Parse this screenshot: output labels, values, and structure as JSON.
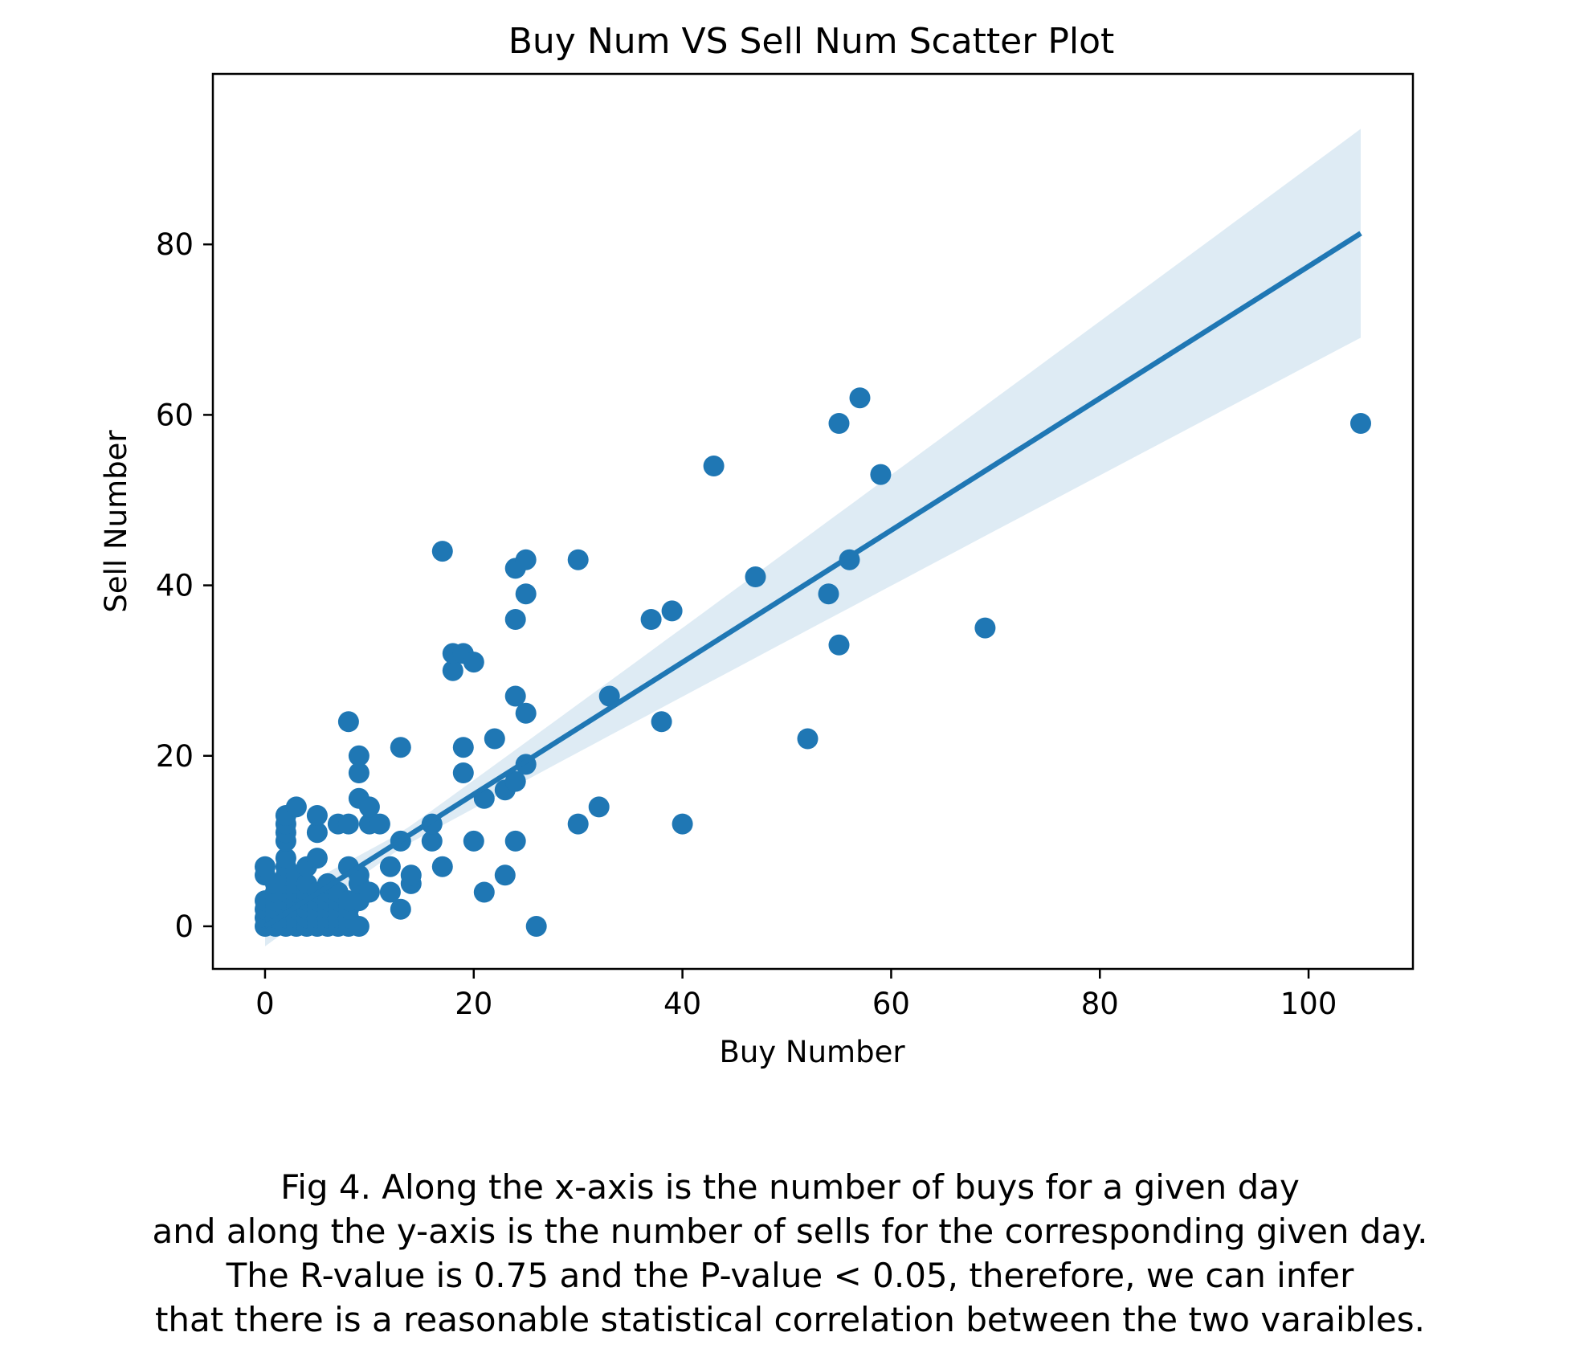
{
  "chart_data": {
    "type": "scatter",
    "title": "Buy Num VS Sell Num Scatter Plot",
    "xlabel": "Buy Number",
    "ylabel": "Sell Number",
    "xlim": [
      -5,
      110
    ],
    "ylim": [
      -5,
      100
    ],
    "xticks": [
      0,
      20,
      40,
      60,
      80,
      100
    ],
    "yticks": [
      0,
      20,
      40,
      60,
      80
    ],
    "grid": false,
    "colors": {
      "points": "#1f77b4",
      "line": "#1f77b4",
      "ci_band": "#1f77b4"
    },
    "regression": {
      "x_range": [
        0,
        105
      ],
      "y_range": [
        0,
        81.3
      ],
      "ci_upper_at_max": 95,
      "ci_lower_at_max": 70.5
    },
    "points": [
      {
        "x": 0,
        "y": 0
      },
      {
        "x": 0,
        "y": 1
      },
      {
        "x": 0,
        "y": 2
      },
      {
        "x": 0,
        "y": 3
      },
      {
        "x": 0,
        "y": 6
      },
      {
        "x": 0,
        "y": 7
      },
      {
        "x": 1,
        "y": 0
      },
      {
        "x": 1,
        "y": 1
      },
      {
        "x": 1,
        "y": 2
      },
      {
        "x": 1,
        "y": 3
      },
      {
        "x": 1,
        "y": 4
      },
      {
        "x": 1,
        "y": 5
      },
      {
        "x": 2,
        "y": 0
      },
      {
        "x": 2,
        "y": 1
      },
      {
        "x": 2,
        "y": 2
      },
      {
        "x": 2,
        "y": 3
      },
      {
        "x": 2,
        "y": 4
      },
      {
        "x": 2,
        "y": 5
      },
      {
        "x": 2,
        "y": 6
      },
      {
        "x": 2,
        "y": 7
      },
      {
        "x": 2,
        "y": 8
      },
      {
        "x": 2,
        "y": 10
      },
      {
        "x": 2,
        "y": 11
      },
      {
        "x": 2,
        "y": 12
      },
      {
        "x": 2,
        "y": 13
      },
      {
        "x": 3,
        "y": 0
      },
      {
        "x": 3,
        "y": 1
      },
      {
        "x": 3,
        "y": 2
      },
      {
        "x": 3,
        "y": 3
      },
      {
        "x": 3,
        "y": 4
      },
      {
        "x": 3,
        "y": 5
      },
      {
        "x": 3,
        "y": 6
      },
      {
        "x": 3,
        "y": 14
      },
      {
        "x": 4,
        "y": 0
      },
      {
        "x": 4,
        "y": 1
      },
      {
        "x": 4,
        "y": 2
      },
      {
        "x": 4,
        "y": 3
      },
      {
        "x": 4,
        "y": 4
      },
      {
        "x": 4,
        "y": 5
      },
      {
        "x": 4,
        "y": 7
      },
      {
        "x": 5,
        "y": 0
      },
      {
        "x": 5,
        "y": 1
      },
      {
        "x": 5,
        "y": 2
      },
      {
        "x": 5,
        "y": 3
      },
      {
        "x": 5,
        "y": 4
      },
      {
        "x": 5,
        "y": 8
      },
      {
        "x": 5,
        "y": 11
      },
      {
        "x": 5,
        "y": 13
      },
      {
        "x": 6,
        "y": 0
      },
      {
        "x": 6,
        "y": 1
      },
      {
        "x": 6,
        "y": 2
      },
      {
        "x": 6,
        "y": 3
      },
      {
        "x": 6,
        "y": 4
      },
      {
        "x": 6,
        "y": 5
      },
      {
        "x": 7,
        "y": 0
      },
      {
        "x": 7,
        "y": 1
      },
      {
        "x": 7,
        "y": 2
      },
      {
        "x": 7,
        "y": 3
      },
      {
        "x": 7,
        "y": 4
      },
      {
        "x": 7,
        "y": 12
      },
      {
        "x": 8,
        "y": 0
      },
      {
        "x": 8,
        "y": 1
      },
      {
        "x": 8,
        "y": 2
      },
      {
        "x": 8,
        "y": 3
      },
      {
        "x": 8,
        "y": 7
      },
      {
        "x": 8,
        "y": 12
      },
      {
        "x": 8,
        "y": 24
      },
      {
        "x": 9,
        "y": 0
      },
      {
        "x": 9,
        "y": 3
      },
      {
        "x": 9,
        "y": 5
      },
      {
        "x": 9,
        "y": 6
      },
      {
        "x": 9,
        "y": 15
      },
      {
        "x": 9,
        "y": 18
      },
      {
        "x": 9,
        "y": 20
      },
      {
        "x": 10,
        "y": 4
      },
      {
        "x": 10,
        "y": 12
      },
      {
        "x": 10,
        "y": 14
      },
      {
        "x": 11,
        "y": 12
      },
      {
        "x": 12,
        "y": 4
      },
      {
        "x": 12,
        "y": 7
      },
      {
        "x": 13,
        "y": 2
      },
      {
        "x": 13,
        "y": 10
      },
      {
        "x": 13,
        "y": 21
      },
      {
        "x": 14,
        "y": 5
      },
      {
        "x": 14,
        "y": 6
      },
      {
        "x": 16,
        "y": 10
      },
      {
        "x": 16,
        "y": 12
      },
      {
        "x": 17,
        "y": 7
      },
      {
        "x": 17,
        "y": 44
      },
      {
        "x": 18,
        "y": 30
      },
      {
        "x": 18,
        "y": 32
      },
      {
        "x": 19,
        "y": 18
      },
      {
        "x": 19,
        "y": 21
      },
      {
        "x": 19,
        "y": 32
      },
      {
        "x": 20,
        "y": 10
      },
      {
        "x": 20,
        "y": 31
      },
      {
        "x": 21,
        "y": 4
      },
      {
        "x": 21,
        "y": 15
      },
      {
        "x": 22,
        "y": 22
      },
      {
        "x": 23,
        "y": 6
      },
      {
        "x": 23,
        "y": 16
      },
      {
        "x": 24,
        "y": 10
      },
      {
        "x": 24,
        "y": 17
      },
      {
        "x": 24,
        "y": 27
      },
      {
        "x": 24,
        "y": 36
      },
      {
        "x": 24,
        "y": 42
      },
      {
        "x": 25,
        "y": 19
      },
      {
        "x": 25,
        "y": 25
      },
      {
        "x": 25,
        "y": 39
      },
      {
        "x": 25,
        "y": 43
      },
      {
        "x": 26,
        "y": 0
      },
      {
        "x": 30,
        "y": 12
      },
      {
        "x": 30,
        "y": 43
      },
      {
        "x": 32,
        "y": 14
      },
      {
        "x": 33,
        "y": 27
      },
      {
        "x": 37,
        "y": 36
      },
      {
        "x": 38,
        "y": 24
      },
      {
        "x": 39,
        "y": 37
      },
      {
        "x": 40,
        "y": 12
      },
      {
        "x": 43,
        "y": 54
      },
      {
        "x": 47,
        "y": 41
      },
      {
        "x": 52,
        "y": 22
      },
      {
        "x": 54,
        "y": 39
      },
      {
        "x": 55,
        "y": 33
      },
      {
        "x": 55,
        "y": 59
      },
      {
        "x": 56,
        "y": 43
      },
      {
        "x": 57,
        "y": 62
      },
      {
        "x": 59,
        "y": 53
      },
      {
        "x": 69,
        "y": 35
      },
      {
        "x": 105,
        "y": 59
      }
    ]
  },
  "caption": {
    "lines": [
      "Fig 4. Along the x-axis is the number of buys for a given day",
      "and along the y-axis is the number of sells for the corresponding given day.",
      "The R-value is 0.75 and the P-value < 0.05, therefore, we can infer",
      "that there is a reasonable statistical correlation between the two varaibles."
    ]
  }
}
